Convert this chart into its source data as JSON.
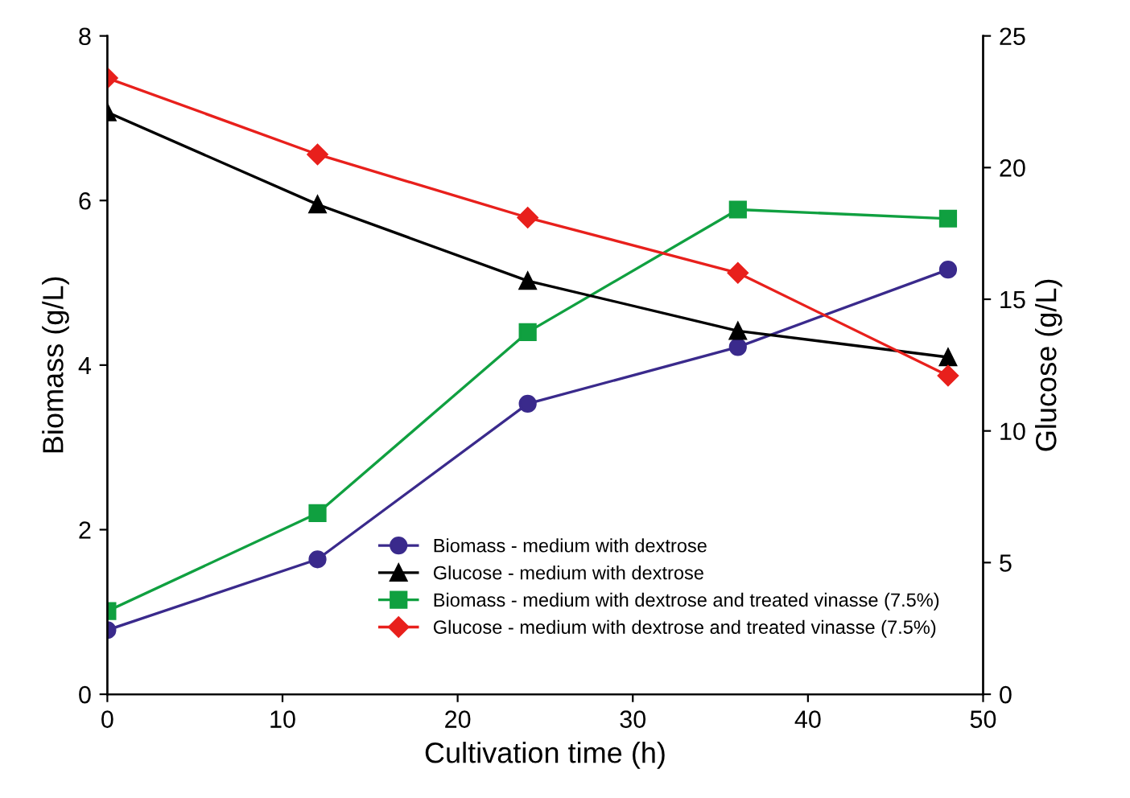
{
  "chart_data": {
    "type": "line",
    "xlabel": "Cultivation time (h)",
    "ylabel": "Biomass (g/L)",
    "y2label": "Glucose (g/L)",
    "x": [
      0,
      12,
      24,
      36,
      48
    ],
    "xlim": [
      0,
      50
    ],
    "xticks": [
      0,
      10,
      20,
      30,
      40,
      50
    ],
    "ylim": [
      0,
      8
    ],
    "yticks": [
      0,
      2,
      4,
      6,
      8
    ],
    "y2lim": [
      0,
      25
    ],
    "y2ticks": [
      0,
      5,
      10,
      15,
      20,
      25
    ],
    "grid": false,
    "legend": "bottom right",
    "series": [
      {
        "name": "Biomass - medium with dextrose",
        "color": "#3a2a8c",
        "marker": "circle",
        "values": [
          0.78,
          1.64,
          3.53,
          4.22,
          5.16
        ]
      },
      {
        "name": "Glucose - medium with dextrose",
        "color": "#000000",
        "marker": "triangle",
        "axis": "y2",
        "values": [
          22.1,
          18.6,
          15.7,
          13.8,
          12.8
        ]
      },
      {
        "name": "Biomass - medium with dextrose and treated vinasse (7.5%)",
        "color": "#10a040",
        "marker": "square",
        "values": [
          1.01,
          2.2,
          4.4,
          5.89,
          5.78
        ]
      },
      {
        "name": "Glucose - medium with dextrose and treated vinasse (7.5%)",
        "color": "#e8201c",
        "marker": "diamond",
        "axis": "y2",
        "values": [
          23.4,
          20.5,
          18.1,
          16.0,
          12.1
        ]
      }
    ]
  }
}
